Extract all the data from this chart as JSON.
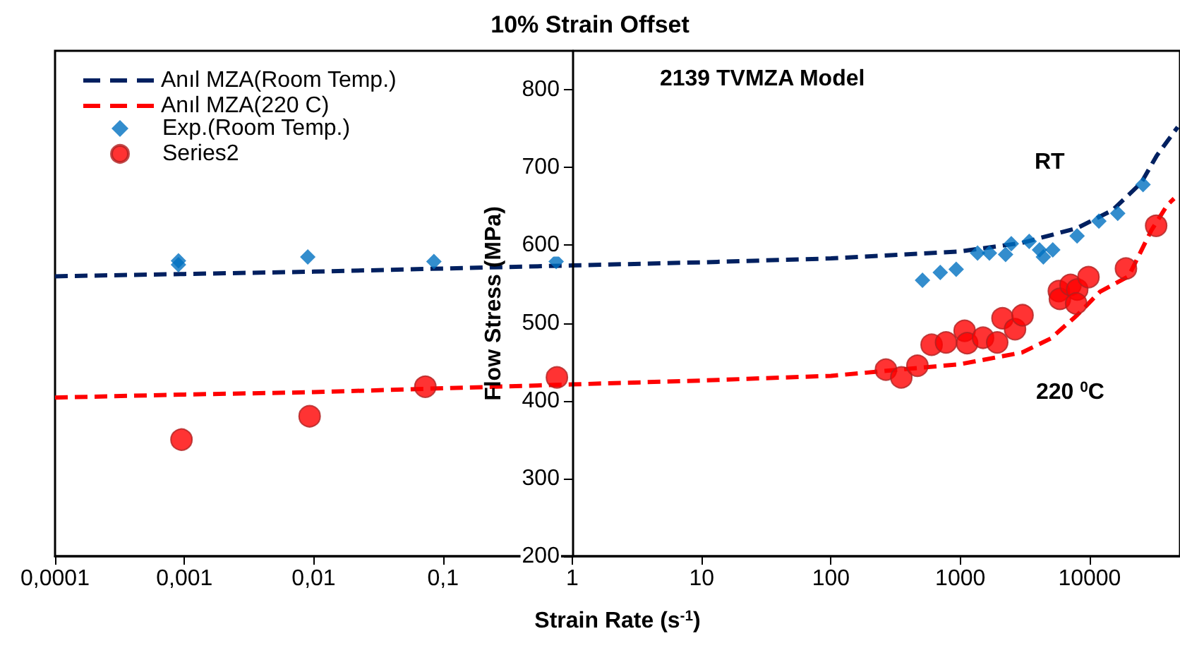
{
  "chart_data": {
    "type": "scatter",
    "title": "10% Strain Offset",
    "xlabel": "Strain Rate (s$^{-1}$)",
    "ylabel": "Flow Stress (MPa)",
    "annotations": [
      "2139 TVMZA Model",
      "RT",
      "220 $^{0}$C"
    ],
    "log": "x",
    "grid": false,
    "legend": "top left",
    "xlim": [
      0.0001,
      50000
    ],
    "ylim": [
      200,
      850
    ],
    "xticks": [
      {
        "value": 0.0001,
        "label": "0,0001"
      },
      {
        "value": 0.001,
        "label": "0,001"
      },
      {
        "value": 0.01,
        "label": "0,01"
      },
      {
        "value": 0.1,
        "label": "0,1"
      },
      1,
      10,
      100,
      1000,
      10000
    ],
    "yticks": [
      200,
      300,
      400,
      500,
      600,
      700,
      800
    ],
    "series": [
      {
        "name": "Anıl MZA(Room Temp.)",
        "type": "line",
        "line_style": "dashed",
        "marker": "none",
        "color": "#002060",
        "x": [
          0.0001,
          0.001,
          0.01,
          0.1,
          1,
          10,
          100,
          1000,
          3000,
          8000,
          15000,
          25000,
          33000,
          48000
        ],
        "values": [
          560,
          563,
          566,
          570,
          574,
          578,
          583,
          592,
          603,
          622,
          645,
          680,
          715,
          752
        ]
      },
      {
        "name": "Anıl MZA(220 C)",
        "type": "line",
        "line_style": "dashed",
        "marker": "none",
        "color": "#ff0000",
        "x": [
          0.0001,
          0.001,
          0.01,
          0.1,
          1,
          10,
          100,
          1000,
          3000,
          5000,
          8000,
          12000,
          20000,
          30000,
          40000,
          45000
        ],
        "values": [
          404,
          408,
          411,
          416,
          421,
          426,
          432,
          447,
          462,
          480,
          510,
          540,
          560,
          619,
          652,
          660
        ]
      },
      {
        "name": "Exp.(Room Temp.)",
        "marker": "diamond",
        "color": "#0070c0",
        "x": [
          0.0009,
          0.0009,
          0.009,
          0.085,
          0.75,
          510,
          700,
          930,
          1360,
          1680,
          2240,
          2480,
          3410,
          4100,
          4390,
          5190,
          8000,
          11800,
          16500,
          25900
        ],
        "values": [
          580,
          575,
          585,
          579,
          579,
          555,
          565,
          569,
          590,
          590,
          588,
          602,
          605,
          594,
          585,
          594,
          612,
          631,
          641,
          678
        ]
      },
      {
        "name": "Series2",
        "marker": "circle",
        "color": "#ff0000",
        "x": [
          0.00095,
          0.0093,
          0.073,
          0.76,
          266,
          350,
          466,
          600,
          776,
          1080,
          1130,
          1500,
          1930,
          2120,
          2650,
          3030,
          5780,
          5890,
          7120,
          8020,
          7870,
          9800,
          19100,
          32700
        ],
        "values": [
          350,
          380,
          418,
          430,
          440,
          430,
          445,
          472,
          475,
          490,
          474,
          481,
          475,
          506,
          492,
          510,
          541,
          531,
          549,
          543,
          525,
          559,
          570,
          625
        ]
      }
    ]
  }
}
